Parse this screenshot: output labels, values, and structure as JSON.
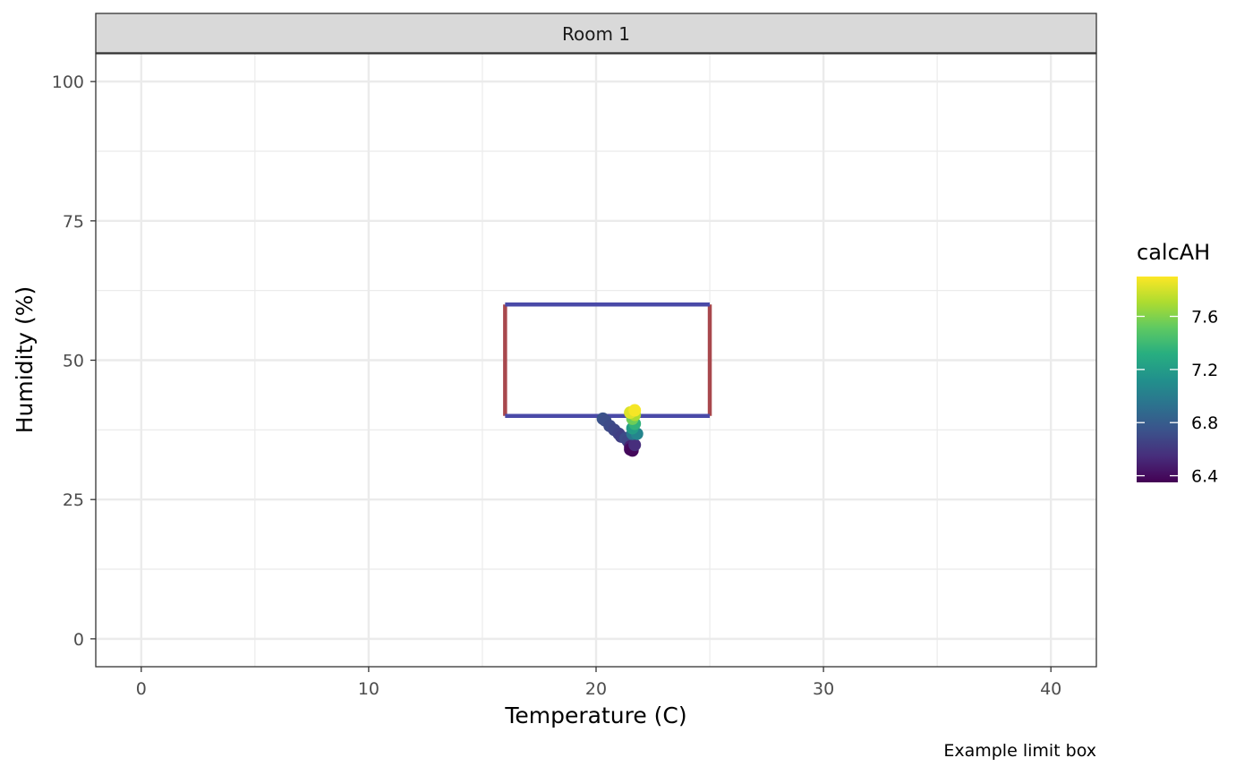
{
  "chart_data": {
    "type": "scatter",
    "facet_label": "Room 1",
    "xlabel": "Temperature (C)",
    "ylabel": "Humidity (%)",
    "caption": "Example limit box",
    "xlim": [
      -2,
      42
    ],
    "ylim": [
      -5,
      105
    ],
    "x_ticks": [
      0,
      10,
      20,
      30,
      40
    ],
    "y_ticks": [
      0,
      25,
      50,
      75,
      100
    ],
    "x_minor": [
      5,
      15,
      25,
      35
    ],
    "y_minor": [
      12.5,
      37.5,
      62.5,
      87.5
    ],
    "grid": true,
    "legend": {
      "title": "calcAH",
      "position": "right",
      "range": [
        6.35,
        7.9
      ],
      "ticks": [
        6.4,
        6.8,
        7.2,
        7.6
      ],
      "tick_labels": [
        "6.4",
        "6.8",
        "7.2",
        "7.6"
      ],
      "palette": "viridis"
    },
    "limit_box": {
      "temp_min": 16,
      "temp_max": 25,
      "humidity_min": 40,
      "humidity_max": 60,
      "temp_color": "#a8484d",
      "humidity_color": "#4a4aa8"
    },
    "points": [
      {
        "x": 20.3,
        "y": 39.5,
        "c": 6.75
      },
      {
        "x": 20.4,
        "y": 39.2,
        "c": 6.72
      },
      {
        "x": 20.6,
        "y": 38.2,
        "c": 6.7
      },
      {
        "x": 20.8,
        "y": 37.5,
        "c": 6.68
      },
      {
        "x": 21.0,
        "y": 36.8,
        "c": 6.66
      },
      {
        "x": 21.1,
        "y": 36.3,
        "c": 6.64
      },
      {
        "x": 21.3,
        "y": 36.0,
        "c": 6.7
      },
      {
        "x": 21.4,
        "y": 35.5,
        "c": 6.68
      },
      {
        "x": 21.5,
        "y": 34.5,
        "c": 6.5
      },
      {
        "x": 21.5,
        "y": 34.0,
        "c": 6.4
      },
      {
        "x": 21.6,
        "y": 33.8,
        "c": 6.38
      },
      {
        "x": 21.7,
        "y": 34.8,
        "c": 6.55
      },
      {
        "x": 21.6,
        "y": 36.8,
        "c": 6.95
      },
      {
        "x": 21.8,
        "y": 36.8,
        "c": 7.05
      },
      {
        "x": 21.6,
        "y": 37.8,
        "c": 7.2
      },
      {
        "x": 21.7,
        "y": 38.6,
        "c": 7.35
      },
      {
        "x": 21.6,
        "y": 39.5,
        "c": 7.55
      },
      {
        "x": 21.7,
        "y": 40.2,
        "c": 7.7
      },
      {
        "x": 21.5,
        "y": 40.6,
        "c": 7.82
      },
      {
        "x": 21.7,
        "y": 41.0,
        "c": 7.88
      }
    ]
  }
}
